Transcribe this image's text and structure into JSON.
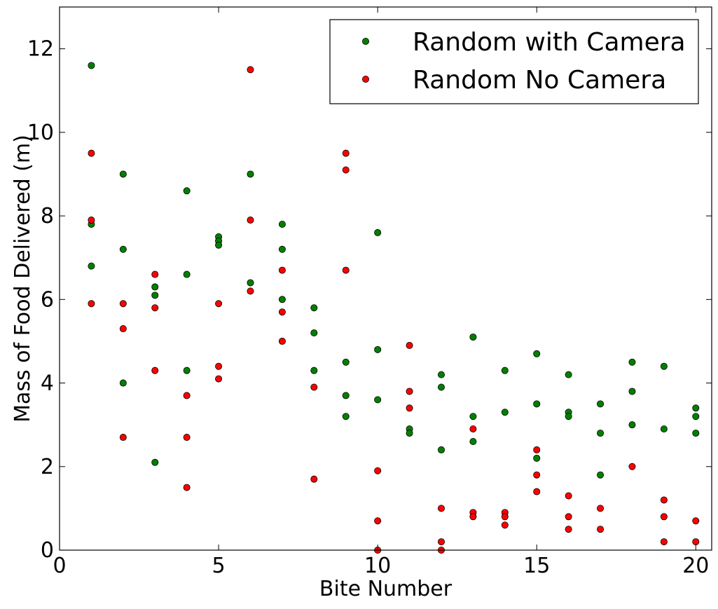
{
  "chart_data": {
    "type": "scatter",
    "title": "",
    "xlabel": "Bite Number",
    "ylabel": "Mass of Food Delivered (m)",
    "xlim": [
      0,
      20.5
    ],
    "ylim": [
      0,
      13
    ],
    "xticks": [
      0,
      5,
      10,
      15,
      20
    ],
    "yticks": [
      0,
      2,
      4,
      6,
      8,
      10,
      12
    ],
    "grid": false,
    "legend_position": "top-right",
    "series": [
      {
        "name": "Random with Camera",
        "color": "#008000",
        "points": [
          [
            1,
            11.6
          ],
          [
            1,
            7.8
          ],
          [
            1,
            6.8
          ],
          [
            2,
            9.0
          ],
          [
            2,
            7.2
          ],
          [
            2,
            4.0
          ],
          [
            3,
            6.3
          ],
          [
            3,
            6.1
          ],
          [
            3,
            2.1
          ],
          [
            4,
            8.6
          ],
          [
            4,
            6.6
          ],
          [
            4,
            4.3
          ],
          [
            5,
            7.5
          ],
          [
            5,
            7.4
          ],
          [
            5,
            7.3
          ],
          [
            6,
            9.0
          ],
          [
            6,
            6.4
          ],
          [
            7,
            7.8
          ],
          [
            7,
            7.2
          ],
          [
            7,
            6.0
          ],
          [
            8,
            5.8
          ],
          [
            8,
            5.2
          ],
          [
            8,
            4.3
          ],
          [
            9,
            4.5
          ],
          [
            9,
            3.7
          ],
          [
            9,
            3.2
          ],
          [
            10,
            7.6
          ],
          [
            10,
            4.8
          ],
          [
            10,
            3.6
          ],
          [
            11,
            2.9
          ],
          [
            11,
            2.8
          ],
          [
            12,
            4.2
          ],
          [
            12,
            3.9
          ],
          [
            12,
            2.4
          ],
          [
            13,
            5.1
          ],
          [
            13,
            3.2
          ],
          [
            13,
            2.6
          ],
          [
            14,
            4.3
          ],
          [
            14,
            3.3
          ],
          [
            15,
            4.7
          ],
          [
            15,
            3.5
          ],
          [
            15,
            2.2
          ],
          [
            16,
            4.2
          ],
          [
            16,
            3.3
          ],
          [
            16,
            3.2
          ],
          [
            17,
            3.5
          ],
          [
            17,
            2.8
          ],
          [
            17,
            1.8
          ],
          [
            18,
            4.5
          ],
          [
            18,
            3.8
          ],
          [
            18,
            3.0
          ],
          [
            19,
            4.4
          ],
          [
            19,
            2.9
          ],
          [
            20,
            3.4
          ],
          [
            20,
            3.2
          ],
          [
            20,
            2.8
          ]
        ]
      },
      {
        "name": "Random No Camera",
        "color": "#ff0000",
        "points": [
          [
            1,
            9.5
          ],
          [
            1,
            7.9
          ],
          [
            1,
            5.9
          ],
          [
            2,
            5.9
          ],
          [
            2,
            5.3
          ],
          [
            2,
            2.7
          ],
          [
            3,
            6.6
          ],
          [
            3,
            5.8
          ],
          [
            3,
            4.3
          ],
          [
            4,
            3.7
          ],
          [
            4,
            2.7
          ],
          [
            4,
            1.5
          ],
          [
            5,
            5.9
          ],
          [
            5,
            4.4
          ],
          [
            5,
            4.1
          ],
          [
            6,
            11.5
          ],
          [
            6,
            7.9
          ],
          [
            6,
            6.2
          ],
          [
            7,
            6.7
          ],
          [
            7,
            5.7
          ],
          [
            7,
            5.0
          ],
          [
            8,
            3.9
          ],
          [
            8,
            1.7
          ],
          [
            9,
            9.5
          ],
          [
            9,
            9.1
          ],
          [
            9,
            6.7
          ],
          [
            10,
            1.9
          ],
          [
            10,
            0.7
          ],
          [
            10,
            0.0
          ],
          [
            11,
            4.9
          ],
          [
            11,
            3.8
          ],
          [
            11,
            3.4
          ],
          [
            12,
            1.0
          ],
          [
            12,
            0.2
          ],
          [
            12,
            0.0
          ],
          [
            13,
            2.9
          ],
          [
            13,
            0.9
          ],
          [
            13,
            0.8
          ],
          [
            14,
            0.9
          ],
          [
            14,
            0.8
          ],
          [
            14,
            0.6
          ],
          [
            15,
            2.4
          ],
          [
            15,
            1.8
          ],
          [
            15,
            1.4
          ],
          [
            16,
            1.3
          ],
          [
            16,
            0.8
          ],
          [
            16,
            0.5
          ],
          [
            17,
            1.0
          ],
          [
            17,
            0.5
          ],
          [
            18,
            2.0
          ],
          [
            19,
            1.2
          ],
          [
            19,
            0.8
          ],
          [
            19,
            0.2
          ],
          [
            20,
            0.7
          ],
          [
            20,
            0.2
          ]
        ]
      }
    ]
  }
}
